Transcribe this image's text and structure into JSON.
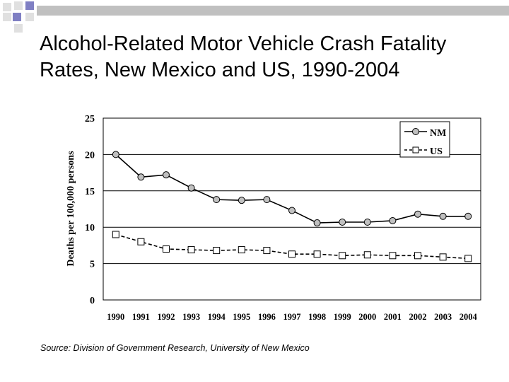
{
  "slide": {
    "title_line1": "Alcohol-Related Motor Vehicle Crash Fatality",
    "title_line2": "Rates, New Mexico and US, 1990-2004",
    "source": "Source:  Division of Government Research, University of New Mexico"
  },
  "colors": {
    "decor_square": "#7f7fc3",
    "decor_bar": "#c0c0c0",
    "decor_bar_light": "#e0e0e0",
    "nm_marker": "#c0c0c0",
    "us_marker": "#ffffff",
    "line": "#000000"
  },
  "chart_data": {
    "type": "line",
    "title": "",
    "xlabel": "",
    "ylabel": "Deaths per 100,000 persons",
    "ylim": [
      0,
      25
    ],
    "yticks": [
      0,
      5,
      10,
      15,
      20,
      25
    ],
    "grid": true,
    "legend": "top-right",
    "categories": [
      "1990",
      "1991",
      "1992",
      "1993",
      "1994",
      "1995",
      "1996",
      "1997",
      "1998",
      "1999",
      "2000",
      "2001",
      "2002",
      "2003",
      "2004"
    ],
    "series": [
      {
        "name": "NM",
        "marker": "circle",
        "values": [
          20.0,
          16.9,
          17.2,
          15.4,
          13.8,
          13.7,
          13.8,
          12.3,
          10.6,
          10.7,
          10.7,
          10.9,
          11.8,
          11.5,
          11.5
        ]
      },
      {
        "name": "US",
        "marker": "square",
        "values": [
          9.0,
          8.0,
          7.0,
          6.9,
          6.8,
          6.9,
          6.8,
          6.3,
          6.3,
          6.1,
          6.2,
          6.1,
          6.1,
          5.9,
          5.7
        ]
      }
    ]
  }
}
